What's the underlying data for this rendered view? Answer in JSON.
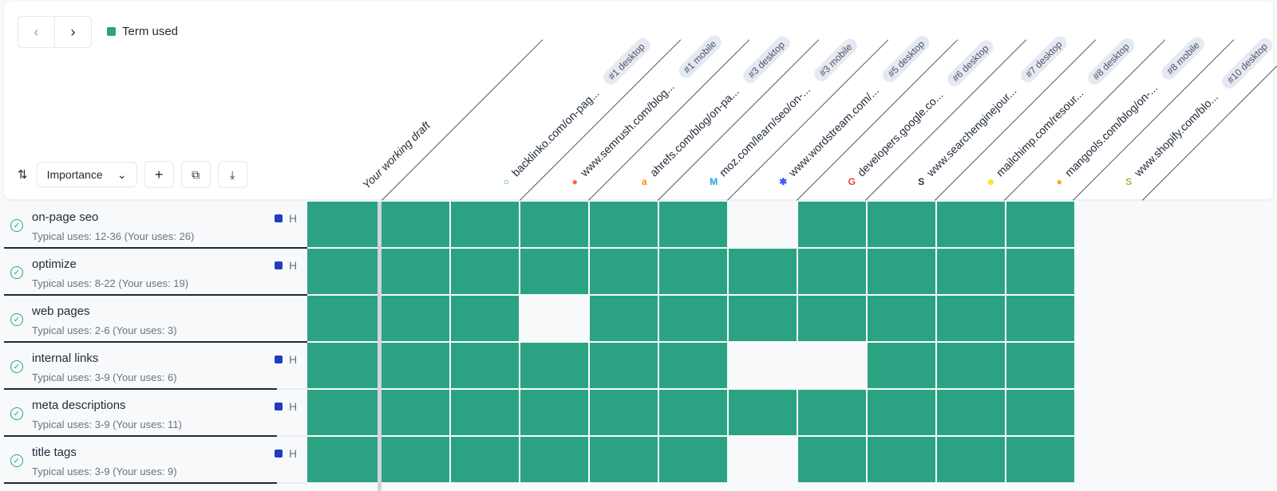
{
  "legend": {
    "label": "Term used",
    "color": "#2ba383"
  },
  "toolbar": {
    "sort_label": "Importance"
  },
  "draft_label": "Your working draft",
  "columns": [
    {
      "label": "backlinko.com/on-pag...",
      "badge": "#1 desktop",
      "icon": "backlinko-logo",
      "color": "#10b981",
      "glyph": "○"
    },
    {
      "label": "www.semrush.com/blog...",
      "badge": "#1 mobile",
      "icon": "semrush-logo",
      "color": "#ff642d",
      "glyph": "●"
    },
    {
      "label": "ahrefs.com/blog/on-pa...",
      "badge": "#3 desktop",
      "icon": "ahrefs-logo",
      "color": "#ff8800",
      "glyph": "a"
    },
    {
      "label": "moz.com/learn/seo/on-...",
      "badge": "#3 mobile",
      "icon": "moz-logo",
      "color": "#1fa0e0",
      "glyph": "M"
    },
    {
      "label": "www.wordstream.com/...",
      "badge": "#5 desktop",
      "icon": "wordstream-logo",
      "color": "#3b5bfd",
      "glyph": "✱"
    },
    {
      "label": "developers.google.co...",
      "badge": "#6 desktop",
      "icon": "google-logo",
      "color": "#ea4335",
      "glyph": "G"
    },
    {
      "label": "www.searchenginejour...",
      "badge": "#7 desktop",
      "icon": "sej-logo",
      "color": "#333333",
      "glyph": "S"
    },
    {
      "label": "mailchimp.com/resour...",
      "badge": "#8 desktop",
      "icon": "mailchimp-logo",
      "color": "#ffe01b",
      "glyph": "☻"
    },
    {
      "label": "mangools.com/blog/on-...",
      "badge": "#8 mobile",
      "icon": "mangools-logo",
      "color": "#ff9f1c",
      "glyph": "●"
    },
    {
      "label": "www.shopify.com/blo...",
      "badge": "#10 desktop",
      "icon": "shopify-logo",
      "color": "#95bf47",
      "glyph": "S"
    }
  ],
  "rows": [
    {
      "term": "on-page seo",
      "typical": "Typical uses: 12-36 (Your uses: 26)",
      "priority": "H",
      "progress": 1.0,
      "cells": [
        1,
        1,
        1,
        1,
        1,
        1,
        0,
        1,
        1,
        1,
        1
      ]
    },
    {
      "term": "optimize",
      "typical": "Typical uses: 8-22 (Your uses: 19)",
      "priority": "H",
      "progress": 1.0,
      "cells": [
        1,
        1,
        1,
        1,
        1,
        1,
        1,
        1,
        1,
        1,
        1
      ]
    },
    {
      "term": "web pages",
      "typical": "Typical uses: 2-6 (Your uses: 3)",
      "priority": "",
      "progress": 1.0,
      "cells": [
        1,
        1,
        1,
        0,
        1,
        1,
        1,
        1,
        1,
        1,
        1
      ]
    },
    {
      "term": "internal links",
      "typical": "Typical uses: 3-9 (Your uses: 6)",
      "priority": "H",
      "progress": 0.9,
      "cells": [
        1,
        1,
        1,
        1,
        1,
        1,
        0,
        0,
        1,
        1,
        1
      ]
    },
    {
      "term": "meta descriptions",
      "typical": "Typical uses: 3-9 (Your uses: 11)",
      "priority": "H",
      "progress": 0.9,
      "cells": [
        1,
        1,
        1,
        1,
        1,
        1,
        1,
        1,
        1,
        1,
        1
      ]
    },
    {
      "term": "title tags",
      "typical": "Typical uses: 3-9 (Your uses: 9)",
      "priority": "H",
      "progress": 0.9,
      "cells": [
        1,
        1,
        1,
        1,
        1,
        1,
        0,
        1,
        1,
        1,
        1
      ]
    }
  ]
}
